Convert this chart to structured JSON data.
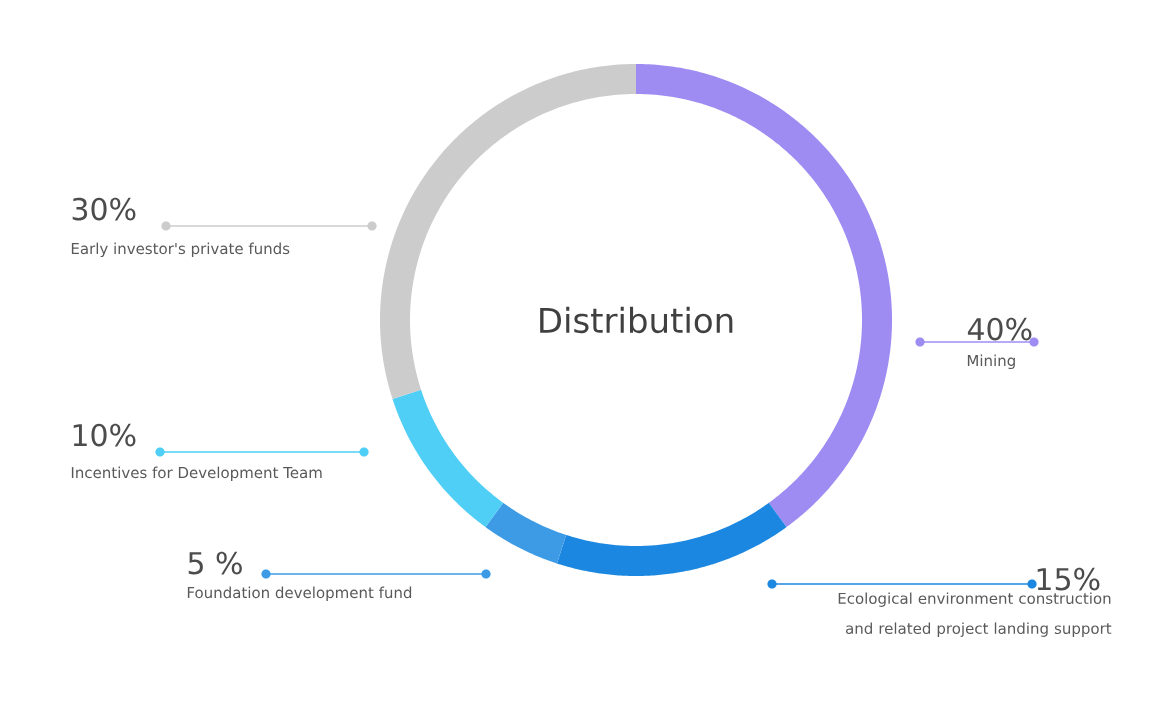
{
  "chart_data": {
    "type": "donut",
    "title": "Distribution",
    "categories": [
      "Mining",
      "Ecological environment construction and related project landing support",
      "Foundation development fund",
      "Incentives for Development Team",
      "Early investor's private funds"
    ],
    "values": [
      40,
      15,
      5,
      10,
      30
    ],
    "value_labels": [
      "40%",
      "15%",
      "5 %",
      "10%",
      "30%"
    ],
    "colors": [
      "#9e8cf3",
      "#1b87e0",
      "#3d9be6",
      "#4fcff5",
      "#cccccc"
    ],
    "legend": "left"
  }
}
